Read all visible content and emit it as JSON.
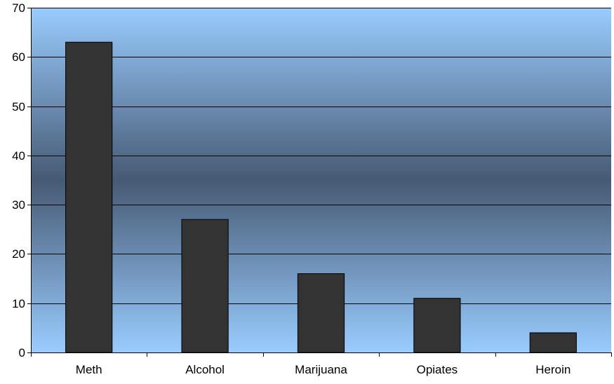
{
  "chart_data": {
    "type": "bar",
    "title": "",
    "xlabel": "",
    "ylabel": "",
    "categories": [
      "Meth",
      "Alcohol",
      "Marijuana",
      "Opiates",
      "Heroin"
    ],
    "values": [
      63,
      27,
      16,
      11,
      4
    ],
    "ylim": [
      0,
      70
    ],
    "yticks": [
      "0",
      "10",
      "20",
      "30",
      "40",
      "50",
      "60",
      "70"
    ],
    "grid": true,
    "legend": "none",
    "colors": {
      "bar": "#333333",
      "background_edge": "#99ccff",
      "background_center": "#465a74",
      "gridline": "#000000"
    }
  }
}
